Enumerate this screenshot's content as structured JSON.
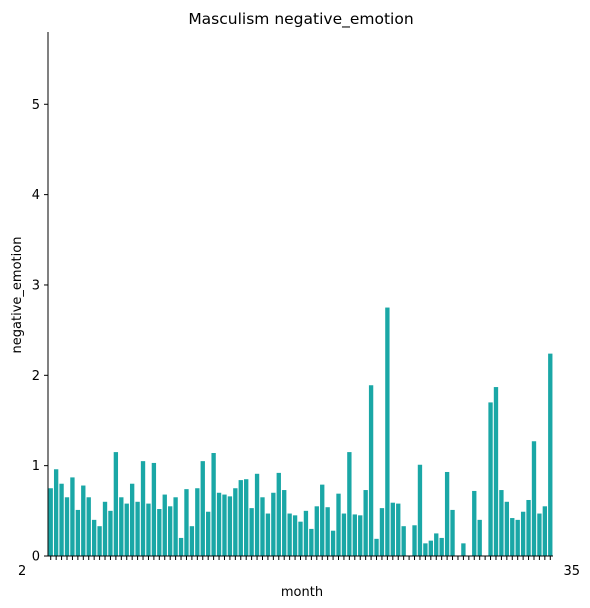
{
  "chart_data": {
    "type": "bar",
    "title": "Masculism negative_emotion",
    "xlabel": "month",
    "ylabel": "negative_emotion",
    "ylim": [
      0,
      5.8
    ],
    "yticks": [
      0,
      1,
      2,
      3,
      4,
      5
    ],
    "bar_color": "#1aa7a6",
    "grid": false,
    "legend": "none",
    "first_tick_label": "2",
    "last_tick_label": "35",
    "values": [
      0.75,
      0.96,
      0.8,
      0.65,
      0.87,
      0.51,
      0.78,
      0.65,
      0.4,
      0.33,
      0.6,
      0.5,
      1.15,
      0.65,
      0.58,
      0.8,
      0.6,
      1.05,
      0.58,
      1.03,
      0.52,
      0.68,
      0.55,
      0.65,
      0.2,
      0.74,
      0.33,
      0.75,
      1.05,
      0.49,
      1.14,
      0.7,
      0.68,
      0.66,
      0.75,
      0.84,
      0.85,
      0.53,
      0.91,
      0.65,
      0.47,
      0.7,
      0.92,
      0.73,
      0.47,
      0.45,
      0.38,
      0.5,
      0.3,
      0.55,
      0.79,
      0.54,
      0.28,
      0.69,
      0.47,
      1.15,
      0.46,
      0.45,
      0.73,
      1.89,
      0.19,
      0.53,
      2.75,
      0.59,
      0.58,
      0.33,
      0.0,
      0.34,
      1.01,
      0.14,
      0.17,
      0.25,
      0.2,
      0.93,
      0.51,
      0.0,
      0.14,
      0.0,
      0.72,
      0.4,
      0.0,
      1.7,
      1.87,
      0.73,
      0.6,
      0.42,
      0.4,
      0.49,
      0.62,
      1.27,
      0.47,
      0.55,
      2.24
    ]
  }
}
